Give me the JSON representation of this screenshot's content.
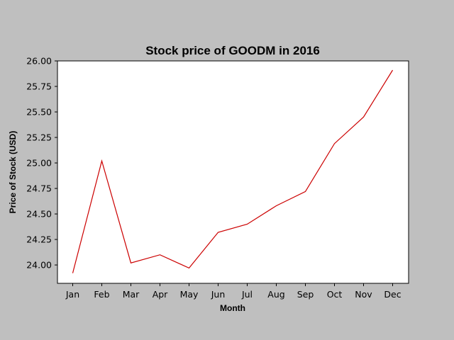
{
  "chart_data": {
    "type": "line",
    "title": "Stock price of GOODM in 2016",
    "xlabel": "Month",
    "ylabel": "Price of Stock (USD)",
    "categories": [
      "Jan",
      "Feb",
      "Mar",
      "Apr",
      "May",
      "Jun",
      "Jul",
      "Aug",
      "Sep",
      "Oct",
      "Nov",
      "Dec"
    ],
    "series": [
      {
        "values": [
          23.92,
          25.02,
          24.02,
          24.1,
          23.97,
          24.32,
          24.4,
          24.58,
          24.72,
          25.19,
          25.45,
          25.91
        ]
      }
    ],
    "ylim": [
      23.82,
      26.0
    ],
    "yticks": [
      "24.00",
      "24.25",
      "24.50",
      "24.75",
      "25.00",
      "25.25",
      "25.50",
      "25.75",
      "26.00"
    ],
    "grid": false,
    "colors": {
      "figure_background": "#bfbfbf",
      "plot_background": "#ffffff",
      "line": "#cc0000"
    }
  }
}
